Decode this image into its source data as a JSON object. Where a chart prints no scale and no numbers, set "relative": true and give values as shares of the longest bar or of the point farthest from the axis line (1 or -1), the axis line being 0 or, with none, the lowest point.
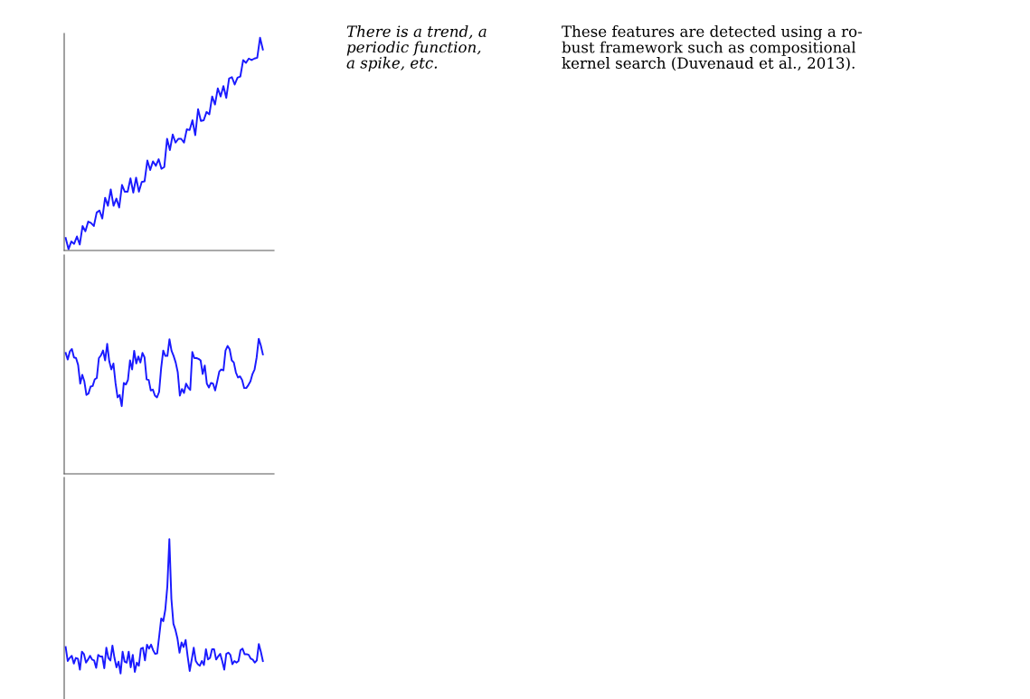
{
  "chart_data": [
    {
      "type": "line",
      "relative": true,
      "color": "#1a1aff",
      "categories": [
        null,
        null,
        null,
        null,
        null,
        null,
        null,
        null,
        null,
        null,
        null,
        null,
        null,
        null,
        null,
        null,
        null,
        null,
        null,
        null,
        null,
        null,
        null,
        null,
        null,
        null,
        null,
        null,
        null,
        null,
        null,
        null,
        null,
        null,
        null,
        null,
        null,
        null,
        null,
        null,
        null,
        null,
        null,
        null,
        null,
        null,
        null,
        null,
        null,
        null,
        null,
        null,
        null,
        null,
        null,
        null,
        null,
        null,
        null,
        null,
        null,
        null,
        null,
        null,
        null,
        null,
        null,
        null,
        null,
        null,
        null
      ],
      "values": [
        0.059,
        0.006,
        0.042,
        0.031,
        0.066,
        0.028,
        0.115,
        0.09,
        0.136,
        0.129,
        0.115,
        0.178,
        0.188,
        0.15,
        0.248,
        0.21,
        0.287,
        0.21,
        0.244,
        0.202,
        0.308,
        0.276,
        0.276,
        0.339,
        0.272,
        0.342,
        0.276,
        0.322,
        0.325,
        0.423,
        0.378,
        0.419,
        0.398,
        0.429,
        0.384,
        0.392,
        0.525,
        0.472,
        0.545,
        0.507,
        0.525,
        0.525,
        0.507,
        0.57,
        0.566,
        0.612,
        0.542,
        0.664,
        0.609,
        0.612,
        0.651,
        0.64,
        0.724,
        0.686,
        0.762,
        0.724,
        0.773,
        0.717,
        0.808,
        0.815,
        0.78,
        0.812,
        0.818,
        0.895,
        0.882,
        0.902,
        0.895,
        0.902,
        0.906,
        1.0,
        0.944
      ]
    },
    {
      "type": "line",
      "relative": true,
      "color": "#1a1aff",
      "categories": [
        null,
        null,
        null,
        null,
        null,
        null,
        null,
        null,
        null,
        null,
        null,
        null,
        null,
        null,
        null,
        null,
        null,
        null,
        null,
        null,
        null,
        null,
        null,
        null,
        null,
        null,
        null,
        null,
        null,
        null,
        null,
        null,
        null,
        null,
        null,
        null,
        null,
        null,
        null,
        null,
        null,
        null,
        null,
        null,
        null,
        null,
        null,
        null,
        null,
        null,
        null,
        null,
        null,
        null,
        null,
        null,
        null,
        null,
        null,
        null,
        null,
        null,
        null,
        null,
        null,
        null,
        null,
        null,
        null,
        null,
        null,
        null,
        null,
        null,
        null,
        null,
        null,
        null,
        null,
        null,
        null,
        null,
        null,
        null,
        null,
        null,
        null,
        null,
        null,
        null,
        null,
        null,
        null,
        null,
        null,
        null
      ],
      "values": [
        0.895,
        0.846,
        0.906,
        0.924,
        0.862,
        0.857,
        0.806,
        0.668,
        0.733,
        0.684,
        0.584,
        0.595,
        0.646,
        0.65,
        0.699,
        0.71,
        0.857,
        0.877,
        0.913,
        0.84,
        0.962,
        0.833,
        0.773,
        0.817,
        0.673,
        0.566,
        0.584,
        0.501,
        0.673,
        0.661,
        0.695,
        0.84,
        0.773,
        0.911,
        0.817,
        0.869,
        0.824,
        0.895,
        0.862,
        0.699,
        0.695,
        0.617,
        0.624,
        0.579,
        0.566,
        0.606,
        0.784,
        0.913,
        0.873,
        0.873,
        0.996,
        0.911,
        0.873,
        0.824,
        0.751,
        0.579,
        0.628,
        0.599,
        0.668,
        0.639,
        0.621,
        0.902,
        0.857,
        0.857,
        0.851,
        0.84,
        0.739,
        0.802,
        0.668,
        0.639,
        0.673,
        0.668,
        0.617,
        0.684,
        0.757,
        0.773,
        0.766,
        0.913,
        0.947,
        0.922,
        0.84,
        0.824,
        0.751,
        0.713,
        0.722,
        0.695,
        0.635,
        0.635,
        0.657,
        0.684,
        0.739,
        0.773,
        0.862,
        1.0,
        0.951,
        0.884
      ]
    },
    {
      "type": "line",
      "relative": true,
      "color": "#1a1aff",
      "categories": [
        null,
        null,
        null,
        null,
        null,
        null,
        null,
        null,
        null,
        null,
        null,
        null,
        null,
        null,
        null,
        null,
        null,
        null,
        null,
        null,
        null,
        null,
        null,
        null,
        null,
        null,
        null,
        null,
        null,
        null,
        null,
        null,
        null,
        null,
        null,
        null,
        null,
        null,
        null,
        null,
        null,
        null,
        null,
        null,
        null,
        null,
        null,
        null,
        null,
        null,
        null,
        null,
        null,
        null,
        null,
        null,
        null,
        null,
        null,
        null,
        null,
        null,
        null,
        null,
        null,
        null,
        null,
        null,
        null,
        null,
        null,
        null,
        null,
        null,
        null,
        null,
        null,
        null,
        null,
        null,
        null,
        null,
        null,
        null,
        null,
        null,
        null,
        null,
        null,
        null,
        null,
        null,
        null,
        null,
        null,
        null,
        null,
        null
      ],
      "values": [
        0.197,
        0.093,
        0.116,
        0.132,
        0.074,
        0.116,
        0.111,
        0.028,
        0.162,
        0.144,
        0.081,
        0.104,
        0.132,
        0.104,
        0.097,
        0.042,
        0.139,
        0.127,
        0.127,
        0.039,
        0.192,
        0.116,
        0.097,
        0.208,
        0.116,
        0.046,
        0.088,
        0.0,
        0.162,
        0.088,
        0.081,
        0.162,
        0.046,
        0.139,
        0.012,
        0.081,
        0.058,
        0.185,
        0.192,
        0.097,
        0.215,
        0.185,
        0.215,
        0.174,
        0.146,
        0.15,
        0.278,
        0.41,
        0.389,
        0.475,
        0.648,
        1.0,
        0.556,
        0.37,
        0.324,
        0.259,
        0.155,
        0.231,
        0.197,
        0.25,
        0.127,
        0.019,
        0.104,
        0.192,
        0.093,
        0.069,
        0.058,
        0.093,
        0.063,
        0.181,
        0.104,
        0.116,
        0.181,
        0.181,
        0.104,
        0.127,
        0.146,
        0.093,
        0.028,
        0.146,
        0.155,
        0.139,
        0.069,
        0.093,
        0.081,
        0.093,
        0.174,
        0.185,
        0.144,
        0.144,
        0.139,
        0.111,
        0.104,
        0.081,
        0.097,
        0.22,
        0.162,
        0.093
      ]
    },
    {
      "type": "other",
      "annotations": [
        "There is a trend, a\nperiodic function,\na spike, etc.",
        "These features are detected using a ro-\nbust framework such as compositional\nkernel search (Duvenaud et al., 2013)."
      ]
    }
  ]
}
